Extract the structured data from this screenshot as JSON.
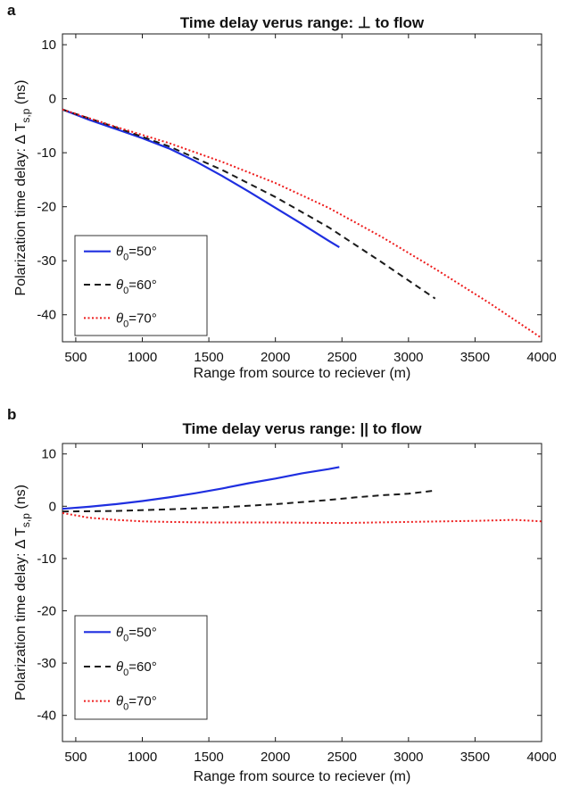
{
  "chart_data": [
    {
      "type": "line",
      "panel": "a",
      "title": "Time delay verus range: ⊥ to flow",
      "xlabel": "Range from source to reciever (m)",
      "ylabel": "Polarization time delay: Δ T",
      "ylabel_sub": "s,p",
      "ylabel_unit": " (ns)",
      "xlim": [
        400,
        4000
      ],
      "ylim": [
        -45,
        12
      ],
      "xticks": [
        500,
        1000,
        1500,
        2000,
        2500,
        3000,
        3500,
        4000
      ],
      "yticks": [
        10,
        0,
        -10,
        -20,
        -30,
        -40
      ],
      "grid": false,
      "legend_position": "bottom-left",
      "series": [
        {
          "name": "θ0=50°",
          "name_main": "θ",
          "name_sub": "0",
          "name_rest": "=50°",
          "color": "#1f2fe0",
          "style": "solid",
          "x": [
            400,
            600,
            800,
            1000,
            1200,
            1400,
            1600,
            1800,
            2000,
            2200,
            2400,
            2480
          ],
          "y": [
            -2,
            -3.9,
            -5.6,
            -7.3,
            -9.2,
            -11.6,
            -14.3,
            -17.2,
            -20.2,
            -23.2,
            -26.3,
            -27.5
          ]
        },
        {
          "name": "θ0=60°",
          "name_main": "θ",
          "name_sub": "0",
          "name_rest": "=60°",
          "color": "#1a1a1a",
          "style": "dashed",
          "x": [
            400,
            800,
            1200,
            1600,
            2000,
            2400,
            2800,
            3200
          ],
          "y": [
            -2,
            -5.3,
            -8.8,
            -13.2,
            -18.2,
            -23.8,
            -30.3,
            -37
          ]
        },
        {
          "name": "θ0=70°",
          "name_main": "θ",
          "name_sub": "0",
          "name_rest": "=70°",
          "color": "#ee1c1c",
          "style": "dotted",
          "x": [
            400,
            800,
            1200,
            1600,
            2000,
            2400,
            2800,
            3200,
            3600,
            4000
          ],
          "y": [
            -2,
            -5.2,
            -8.2,
            -11.7,
            -15.6,
            -20.2,
            -25.6,
            -31.5,
            -37.7,
            -44.3
          ]
        }
      ]
    },
    {
      "type": "line",
      "panel": "b",
      "title": "Time delay verus range: || to flow",
      "xlabel": "Range from source to reciever (m)",
      "ylabel": "Polarization time delay: Δ T",
      "ylabel_sub": "s,p",
      "ylabel_unit": " (ns)",
      "xlim": [
        400,
        4000
      ],
      "ylim": [
        -45,
        12
      ],
      "xticks": [
        500,
        1000,
        1500,
        2000,
        2500,
        3000,
        3500,
        4000
      ],
      "yticks": [
        10,
        0,
        -10,
        -20,
        -30,
        -40
      ],
      "grid": false,
      "legend_position": "bottom-left",
      "series": [
        {
          "name": "θ0=50°",
          "name_main": "θ",
          "name_sub": "0",
          "name_rest": "=50°",
          "color": "#1f2fe0",
          "style": "solid",
          "x": [
            400,
            600,
            800,
            1000,
            1200,
            1400,
            1600,
            1800,
            2000,
            2200,
            2400,
            2480
          ],
          "y": [
            -0.5,
            -0.1,
            0.4,
            1.0,
            1.7,
            2.5,
            3.4,
            4.4,
            5.3,
            6.3,
            7.1,
            7.5
          ]
        },
        {
          "name": "θ0=60°",
          "name_main": "θ",
          "name_sub": "0",
          "name_rest": "=60°",
          "color": "#1a1a1a",
          "style": "dashed",
          "x": [
            400,
            800,
            1200,
            1600,
            2000,
            2400,
            2600,
            2800,
            3000,
            3200
          ],
          "y": [
            -1.0,
            -0.9,
            -0.6,
            -0.2,
            0.4,
            1.2,
            1.7,
            2.1,
            2.4,
            3.0
          ]
        },
        {
          "name": "θ0=70°",
          "name_main": "θ",
          "name_sub": "0",
          "name_rest": "=70°",
          "color": "#ee1c1c",
          "style": "dotted",
          "x": [
            400,
            600,
            800,
            1000,
            1200,
            1500,
            2000,
            2500,
            3000,
            3500,
            3800,
            4000
          ],
          "y": [
            -1.3,
            -2.2,
            -2.6,
            -2.9,
            -3.0,
            -3.1,
            -3.1,
            -3.2,
            -3.0,
            -2.8,
            -2.6,
            -2.9
          ]
        }
      ]
    }
  ]
}
